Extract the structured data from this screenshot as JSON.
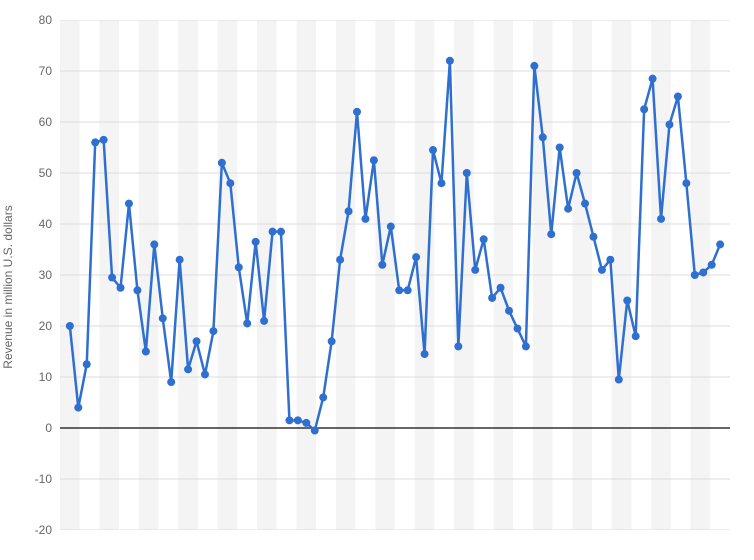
{
  "chart": {
    "type": "line",
    "y_axis_title": "Revenue in million U.S. dollars",
    "ylim": [
      -20,
      80
    ],
    "ytick_step": 10,
    "yticks": [
      -20,
      -10,
      0,
      10,
      20,
      30,
      40,
      50,
      60,
      70,
      80
    ],
    "emphasized_tick": 0,
    "background_color": "#ffffff",
    "band_color_odd": "#ffffff",
    "band_color_even": "#f4f4f4",
    "gridline_color": "#dcdcdc",
    "emph_gridline_color": "#333333",
    "axis_label_color": "#666666",
    "axis_label_fontsize": 12,
    "ytitle_fontsize": 12,
    "line_color": "#2f6fd0",
    "line_width": 2.5,
    "marker_color": "#2f6fd0",
    "marker_radius": 4,
    "n_bands": 34,
    "values": [
      20,
      4,
      12.5,
      56,
      56.5,
      29.5,
      27.5,
      44,
      27,
      15,
      36,
      21.5,
      9,
      33,
      11.5,
      17,
      10.5,
      19,
      52,
      48,
      31.5,
      20.5,
      36.5,
      21,
      38.5,
      38.5,
      1.5,
      1.5,
      1,
      -0.5,
      6,
      17,
      33,
      42.5,
      62,
      41,
      52.5,
      32,
      39.5,
      27,
      27,
      33.5,
      14.5,
      54.5,
      48,
      72,
      16,
      50,
      31,
      37,
      25.5,
      27.5,
      23,
      19.5,
      16,
      71,
      57,
      38,
      55,
      43,
      50,
      44,
      37.5,
      31,
      33,
      9.5,
      25,
      18,
      62.5,
      68.5,
      41,
      59.5,
      65,
      48,
      30,
      30.5,
      32,
      36
    ]
  }
}
